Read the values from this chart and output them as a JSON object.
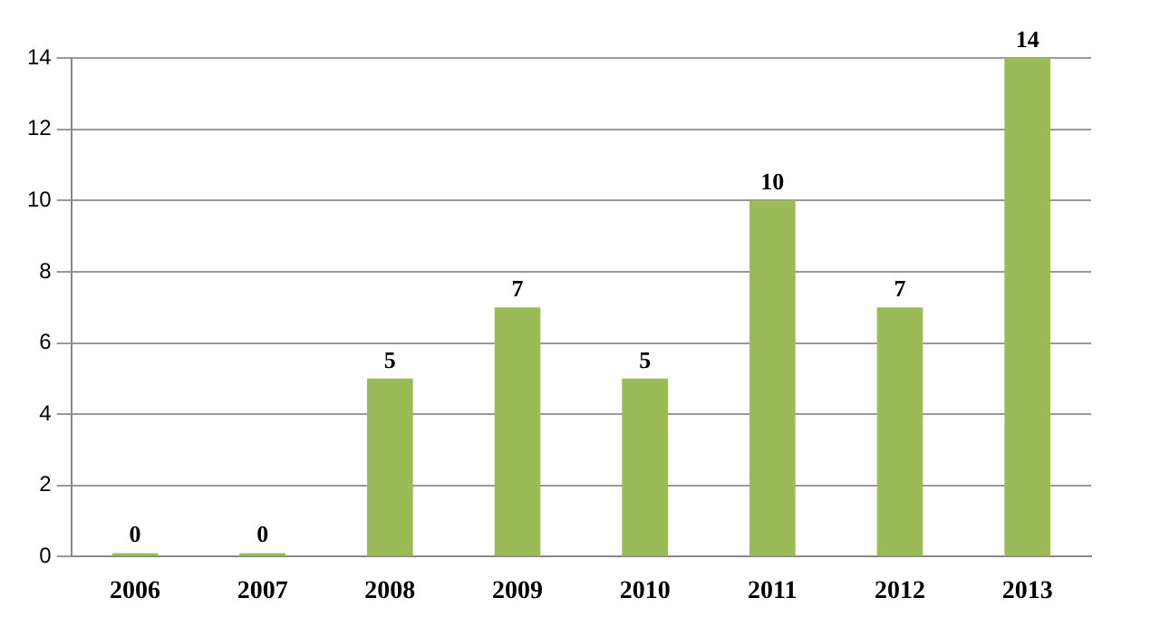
{
  "chart_data": {
    "type": "bar",
    "categories": [
      "2006",
      "2007",
      "2008",
      "2009",
      "2010",
      "2011",
      "2012",
      "2013"
    ],
    "values": [
      0,
      0,
      5,
      7,
      5,
      10,
      7,
      14
    ],
    "color": "#9bbb59",
    "ylim": [
      0,
      14
    ],
    "yticks": [
      0,
      2,
      4,
      6,
      8,
      10,
      12,
      14
    ],
    "grid": "y",
    "data_labels": true
  }
}
